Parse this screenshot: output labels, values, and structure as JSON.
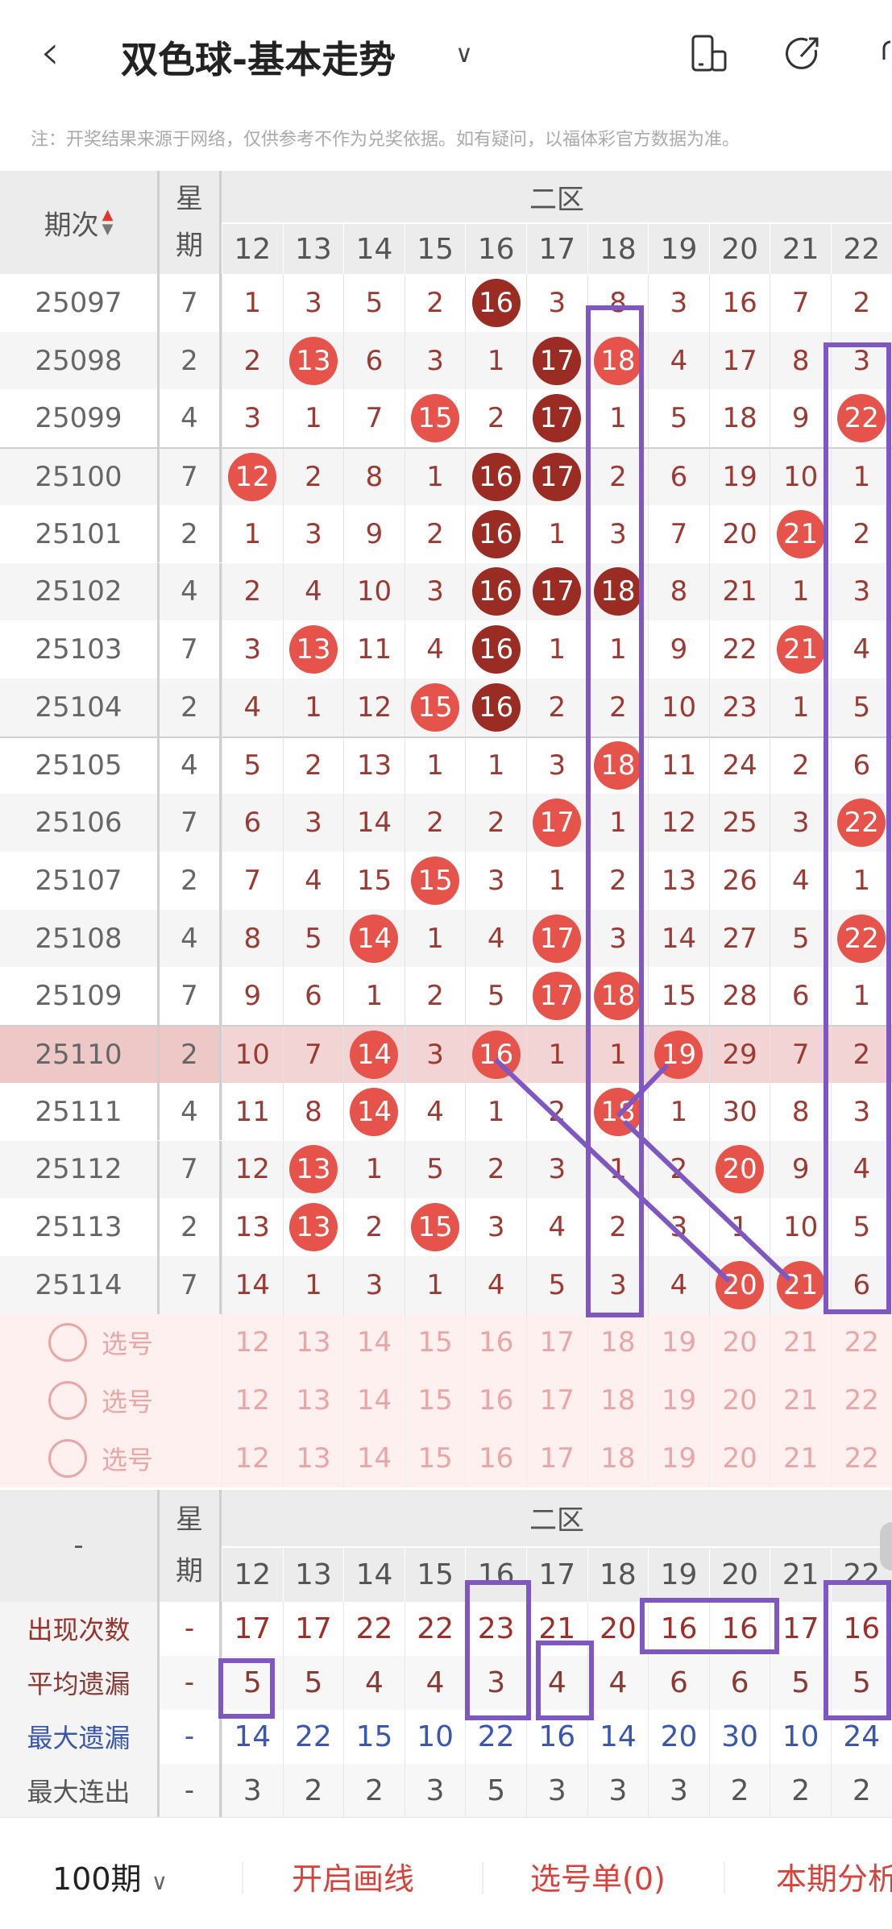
{
  "header": {
    "back_icon": "chevron-left-icon",
    "title": "双色球-基本走势",
    "dropdown_icon": "chevron-down-icon",
    "icons": [
      "phone-tablet-icon",
      "share-icon"
    ]
  },
  "notice": "注：开奖结果来源于网络，仅供参考不作为兑奖依据。如有疑问，以福体彩官方数据为准。",
  "table": {
    "period_header": "期次",
    "week_header": "星期",
    "zone_header": "二区",
    "columns": [
      "12",
      "13",
      "14",
      "15",
      "16",
      "17",
      "18",
      "19",
      "20",
      "21",
      "22"
    ],
    "rows": [
      {
        "period": "25097",
        "week": "7",
        "values": [
          "1",
          "3",
          "5",
          "2",
          "16",
          "3",
          "8",
          "3",
          "16",
          "7",
          "2"
        ],
        "balls": [
          "",
          "",
          "",
          "",
          "d",
          "",
          "",
          "",
          "",
          "",
          ""
        ]
      },
      {
        "period": "25098",
        "week": "2",
        "values": [
          "2",
          "13",
          "6",
          "3",
          "1",
          "17",
          "18",
          "4",
          "17",
          "8",
          "3"
        ],
        "balls": [
          "",
          "r",
          "",
          "",
          "",
          "d",
          "r",
          "",
          "",
          "",
          ""
        ]
      },
      {
        "period": "25099",
        "week": "4",
        "values": [
          "3",
          "1",
          "7",
          "15",
          "2",
          "17",
          "1",
          "5",
          "18",
          "9",
          "22"
        ],
        "balls": [
          "",
          "",
          "",
          "r",
          "",
          "d",
          "",
          "",
          "",
          "",
          "r"
        ]
      },
      {
        "period": "25100",
        "week": "7",
        "values": [
          "12",
          "2",
          "8",
          "1",
          "16",
          "17",
          "2",
          "6",
          "19",
          "10",
          "1"
        ],
        "balls": [
          "r",
          "",
          "",
          "",
          "d",
          "d",
          "",
          "",
          "",
          "",
          ""
        ]
      },
      {
        "period": "25101",
        "week": "2",
        "values": [
          "1",
          "3",
          "9",
          "2",
          "16",
          "1",
          "3",
          "7",
          "20",
          "21",
          "2"
        ],
        "balls": [
          "",
          "",
          "",
          "",
          "d",
          "",
          "",
          "",
          "",
          "r",
          ""
        ]
      },
      {
        "period": "25102",
        "week": "4",
        "values": [
          "2",
          "4",
          "10",
          "3",
          "16",
          "17",
          "18",
          "8",
          "21",
          "1",
          "3"
        ],
        "balls": [
          "",
          "",
          "",
          "",
          "d",
          "d",
          "d",
          "",
          "",
          "",
          ""
        ]
      },
      {
        "period": "25103",
        "week": "7",
        "values": [
          "3",
          "13",
          "11",
          "4",
          "16",
          "1",
          "1",
          "9",
          "22",
          "21",
          "4"
        ],
        "balls": [
          "",
          "r",
          "",
          "",
          "d",
          "",
          "",
          "",
          "",
          "r",
          ""
        ]
      },
      {
        "period": "25104",
        "week": "2",
        "values": [
          "4",
          "1",
          "12",
          "15",
          "16",
          "2",
          "2",
          "10",
          "23",
          "1",
          "5"
        ],
        "balls": [
          "",
          "",
          "",
          "r",
          "d",
          "",
          "",
          "",
          "",
          "",
          ""
        ]
      },
      {
        "period": "25105",
        "week": "4",
        "values": [
          "5",
          "2",
          "13",
          "1",
          "1",
          "3",
          "18",
          "11",
          "24",
          "2",
          "6"
        ],
        "balls": [
          "",
          "",
          "",
          "",
          "",
          "",
          "r",
          "",
          "",
          "",
          ""
        ]
      },
      {
        "period": "25106",
        "week": "7",
        "values": [
          "6",
          "3",
          "14",
          "2",
          "2",
          "17",
          "1",
          "12",
          "25",
          "3",
          "22"
        ],
        "balls": [
          "",
          "",
          "",
          "",
          "",
          "r",
          "",
          "",
          "",
          "",
          "r"
        ]
      },
      {
        "period": "25107",
        "week": "2",
        "values": [
          "7",
          "4",
          "15",
          "15",
          "3",
          "1",
          "2",
          "13",
          "26",
          "4",
          "1"
        ],
        "balls": [
          "",
          "",
          "",
          "r",
          "",
          "",
          "",
          "",
          "",
          "",
          ""
        ]
      },
      {
        "period": "25108",
        "week": "4",
        "values": [
          "8",
          "5",
          "14",
          "1",
          "4",
          "17",
          "3",
          "14",
          "27",
          "5",
          "22"
        ],
        "balls": [
          "",
          "",
          "r",
          "",
          "",
          "r",
          "",
          "",
          "",
          "",
          "r"
        ]
      },
      {
        "period": "25109",
        "week": "7",
        "values": [
          "9",
          "6",
          "1",
          "2",
          "5",
          "17",
          "18",
          "15",
          "28",
          "6",
          "1"
        ],
        "balls": [
          "",
          "",
          "",
          "",
          "",
          "r",
          "r",
          "",
          "",
          "",
          ""
        ]
      },
      {
        "period": "25110",
        "week": "2",
        "values": [
          "10",
          "7",
          "14",
          "3",
          "16",
          "1",
          "1",
          "19",
          "29",
          "7",
          "2"
        ],
        "balls": [
          "",
          "",
          "r",
          "",
          "r",
          "",
          "",
          "r",
          "",
          "",
          ""
        ],
        "highlighted": true
      },
      {
        "period": "25111",
        "week": "4",
        "values": [
          "11",
          "8",
          "14",
          "4",
          "1",
          "2",
          "18",
          "1",
          "30",
          "8",
          "3"
        ],
        "balls": [
          "",
          "",
          "r",
          "",
          "",
          "",
          "r",
          "",
          "",
          "",
          ""
        ]
      },
      {
        "period": "25112",
        "week": "7",
        "values": [
          "12",
          "13",
          "1",
          "5",
          "2",
          "3",
          "1",
          "2",
          "20",
          "9",
          "4"
        ],
        "balls": [
          "",
          "r",
          "",
          "",
          "",
          "",
          "",
          "",
          "r",
          "",
          ""
        ]
      },
      {
        "period": "25113",
        "week": "2",
        "values": [
          "13",
          "13",
          "2",
          "15",
          "3",
          "4",
          "2",
          "3",
          "1",
          "10",
          "5"
        ],
        "balls": [
          "",
          "r",
          "",
          "r",
          "",
          "",
          "",
          "",
          "",
          "",
          ""
        ]
      },
      {
        "period": "25114",
        "week": "7",
        "values": [
          "14",
          "1",
          "3",
          "1",
          "4",
          "5",
          "3",
          "4",
          "20",
          "21",
          "6"
        ],
        "balls": [
          "",
          "",
          "",
          "",
          "",
          "",
          "",
          "",
          "r",
          "r",
          ""
        ]
      }
    ],
    "select_rows": [
      {
        "label": "选号"
      },
      {
        "label": "选号"
      },
      {
        "label": "选号"
      }
    ],
    "stats_header": {
      "label": "-",
      "week": "星期",
      "zone": "二区"
    },
    "stats": [
      {
        "label": "出现次数",
        "week": "-",
        "values": [
          "17",
          "17",
          "22",
          "22",
          "23",
          "21",
          "20",
          "16",
          "16",
          "17",
          "16"
        ],
        "color": "#9b2f2a"
      },
      {
        "label": "平均遗漏",
        "week": "-",
        "values": [
          "5",
          "5",
          "4",
          "4",
          "3",
          "4",
          "4",
          "6",
          "6",
          "5",
          "5"
        ],
        "color": "#8a3a34"
      },
      {
        "label": "最大遗漏",
        "week": "-",
        "values": [
          "14",
          "22",
          "15",
          "10",
          "22",
          "16",
          "14",
          "20",
          "30",
          "10",
          "24"
        ],
        "color": "#3a57b0"
      },
      {
        "label": "最大连出",
        "week": "-",
        "values": [
          "3",
          "2",
          "2",
          "3",
          "5",
          "3",
          "3",
          "3",
          "2",
          "2",
          "2"
        ],
        "color": "#555555"
      }
    ]
  },
  "footer": {
    "period_select": "100期",
    "draw_lines": "开启画线",
    "pick_list": "选号单(0)",
    "analysis": "本期分析"
  },
  "colors": {
    "ball_red": "#e5534b",
    "ball_dark": "#9a2c24",
    "annotation": "#7e57c2",
    "accent": "#d9423a"
  }
}
